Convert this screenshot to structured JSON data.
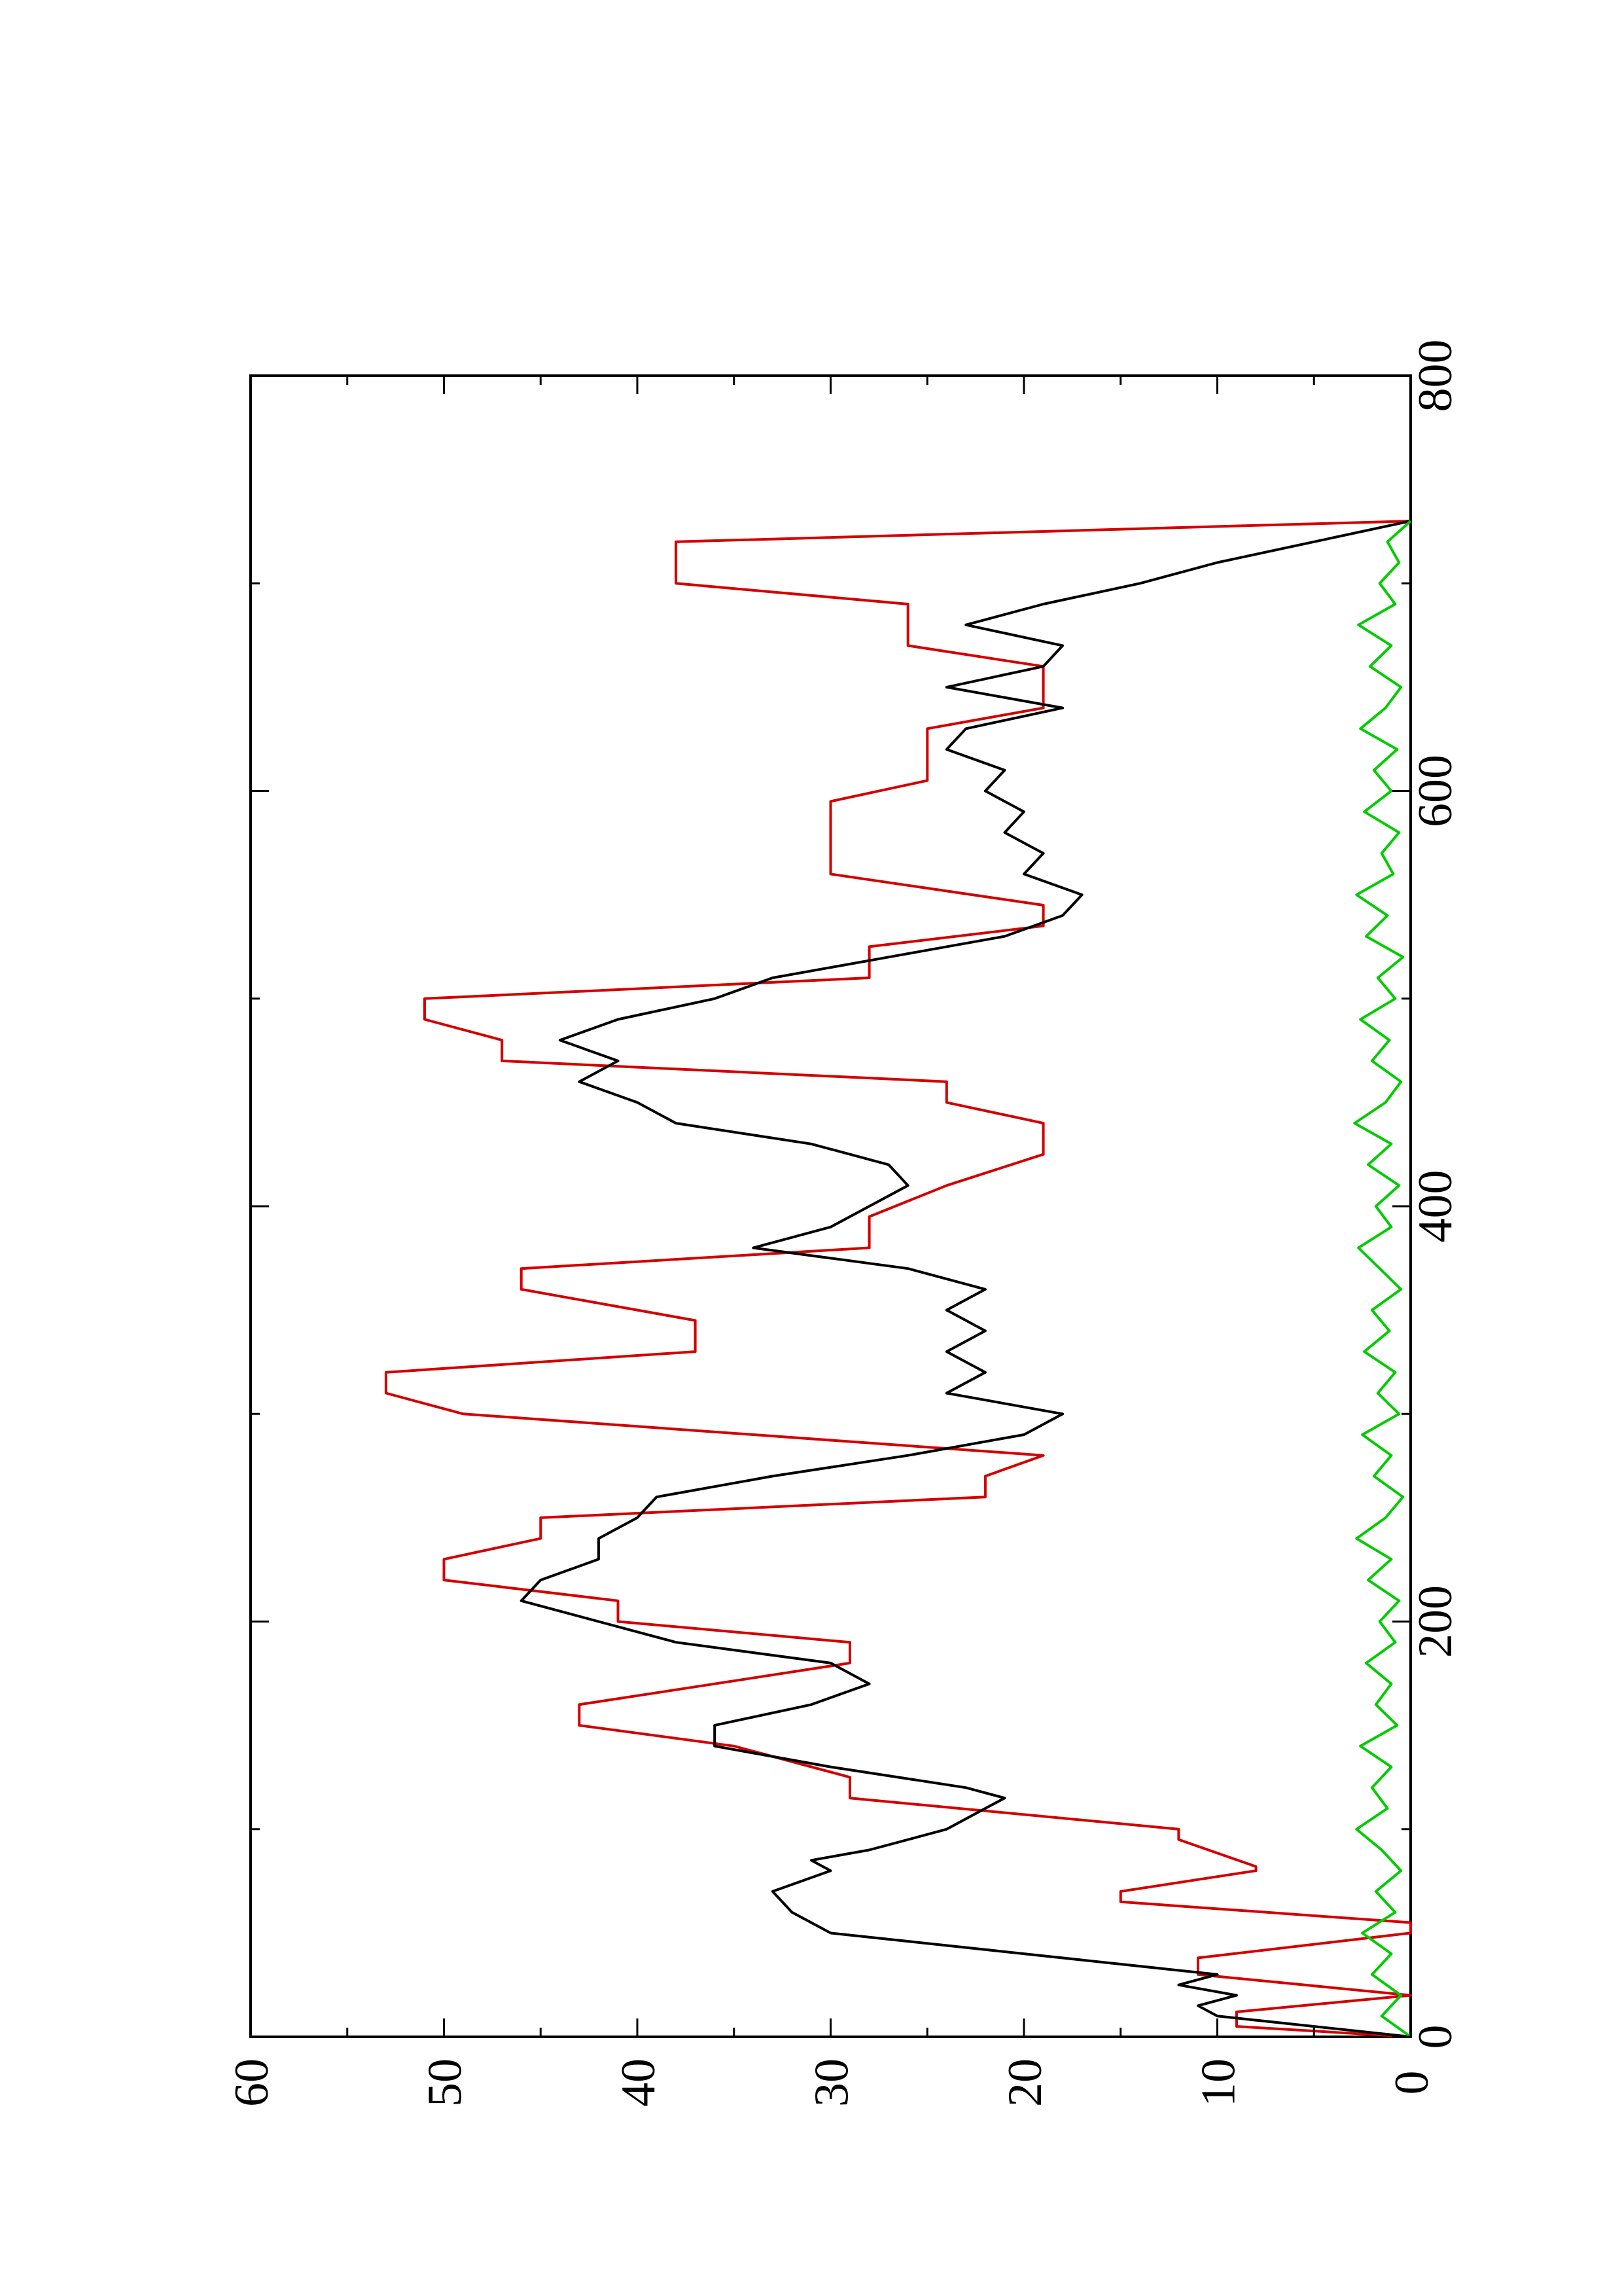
{
  "chart_data": {
    "type": "line",
    "orientation": "rotated-90-ccw",
    "title": "",
    "xlabel": "",
    "ylabel": "",
    "xlim": [
      0,
      800
    ],
    "ylim": [
      0,
      60
    ],
    "x_ticks": [
      0,
      200,
      400,
      600,
      800
    ],
    "y_ticks": [
      0,
      10,
      20,
      30,
      40,
      50,
      60
    ],
    "x_tick_labels": [
      "0",
      "200",
      "400",
      "600",
      "800"
    ],
    "y_tick_labels": [
      "0",
      "10",
      "20",
      "30",
      "40",
      "50",
      "60"
    ],
    "grid": false,
    "legend": "none",
    "series": [
      {
        "color": "#d40000",
        "style": "step-ramp",
        "x": [
          0,
          5,
          12,
          20,
          30,
          38,
          50,
          55,
          65,
          70,
          80,
          82,
          95,
          100,
          115,
          125,
          140,
          150,
          160,
          170,
          180,
          190,
          200,
          210,
          220,
          230,
          240,
          250,
          260,
          270,
          280,
          300,
          310,
          320,
          330,
          345,
          360,
          370,
          380,
          395,
          410,
          425,
          440,
          450,
          460,
          470,
          480,
          490,
          500,
          510,
          525,
          535,
          545,
          560,
          595,
          605,
          630,
          640,
          660,
          670,
          690,
          700,
          720,
          730
        ],
        "y": [
          0,
          9,
          9,
          0,
          11,
          11,
          0,
          0,
          15,
          15,
          8,
          8,
          12,
          12,
          29,
          29,
          35,
          43,
          43,
          36,
          29,
          29,
          41,
          41,
          50,
          50,
          45,
          45,
          22,
          22,
          19,
          49,
          53,
          53,
          37,
          37,
          46,
          46,
          28,
          28,
          24,
          19,
          19,
          24,
          24,
          47,
          47,
          51,
          51,
          28,
          28,
          19,
          19,
          30,
          30,
          25,
          25,
          19,
          19,
          26,
          26,
          38,
          38,
          0
        ]
      },
      {
        "color": "#000000",
        "style": "line",
        "x": [
          0,
          5,
          10,
          15,
          20,
          25,
          30,
          40,
          50,
          60,
          70,
          80,
          85,
          90,
          100,
          110,
          115,
          120,
          130,
          140,
          150,
          160,
          170,
          180,
          190,
          200,
          210,
          220,
          230,
          240,
          250,
          260,
          270,
          280,
          290,
          300,
          310,
          320,
          330,
          340,
          350,
          360,
          370,
          380,
          390,
          400,
          410,
          420,
          430,
          440,
          450,
          460,
          470,
          480,
          490,
          500,
          510,
          520,
          530,
          540,
          550,
          560,
          570,
          580,
          590,
          600,
          610,
          620,
          630,
          640,
          650,
          660,
          670,
          680,
          690,
          700,
          710,
          720,
          730
        ],
        "y": [
          0,
          5,
          10,
          11,
          9,
          12,
          10,
          20,
          30,
          32,
          33,
          30,
          31,
          28,
          24,
          22,
          21,
          23,
          30,
          36,
          36,
          31,
          28,
          30,
          38,
          42,
          46,
          45,
          42,
          42,
          40,
          39,
          33,
          26,
          20,
          18,
          24,
          22,
          24,
          22,
          24,
          22,
          26,
          34,
          30,
          28,
          26,
          27,
          31,
          38,
          40,
          43,
          41,
          44,
          41,
          36,
          33,
          27,
          21,
          18,
          17,
          20,
          19,
          21,
          20,
          22,
          21,
          24,
          23,
          18,
          24,
          19,
          18,
          23,
          19,
          14,
          10,
          5,
          0
        ]
      },
      {
        "color": "#00cc00",
        "style": "noise",
        "x": [
          0,
          10,
          20,
          30,
          40,
          50,
          60,
          70,
          80,
          90,
          100,
          110,
          120,
          130,
          140,
          150,
          160,
          170,
          180,
          190,
          200,
          210,
          220,
          230,
          240,
          250,
          260,
          270,
          280,
          290,
          300,
          310,
          320,
          330,
          340,
          350,
          360,
          370,
          380,
          390,
          400,
          410,
          420,
          430,
          440,
          450,
          460,
          470,
          480,
          490,
          500,
          510,
          520,
          530,
          540,
          550,
          560,
          570,
          580,
          590,
          600,
          610,
          620,
          630,
          640,
          650,
          660,
          670,
          680,
          690,
          700,
          710,
          720,
          730
        ],
        "y": [
          0,
          1.5,
          0.5,
          2,
          1,
          2.5,
          0.8,
          1.8,
          0.5,
          1.5,
          2.8,
          1.2,
          2,
          1,
          2.6,
          0.7,
          1.8,
          1,
          2.3,
          0.8,
          1.6,
          0.6,
          2.2,
          1,
          2.8,
          1.3,
          0.4,
          1.9,
          1,
          2.5,
          0.6,
          1.7,
          0.8,
          2.4,
          1.1,
          2,
          0.5,
          1.6,
          2.7,
          1,
          1.8,
          0.6,
          2.2,
          1,
          2.9,
          1.3,
          0.5,
          2,
          1.1,
          2.6,
          0.8,
          1.7,
          0.4,
          2.3,
          1.2,
          2.8,
          0.9,
          1.5,
          0.6,
          2.4,
          1,
          1.9,
          0.7,
          2.6,
          1.3,
          0.5,
          2.1,
          1,
          2.7,
          0.8,
          1.6,
          0.6,
          1.2,
          0
        ]
      }
    ]
  }
}
